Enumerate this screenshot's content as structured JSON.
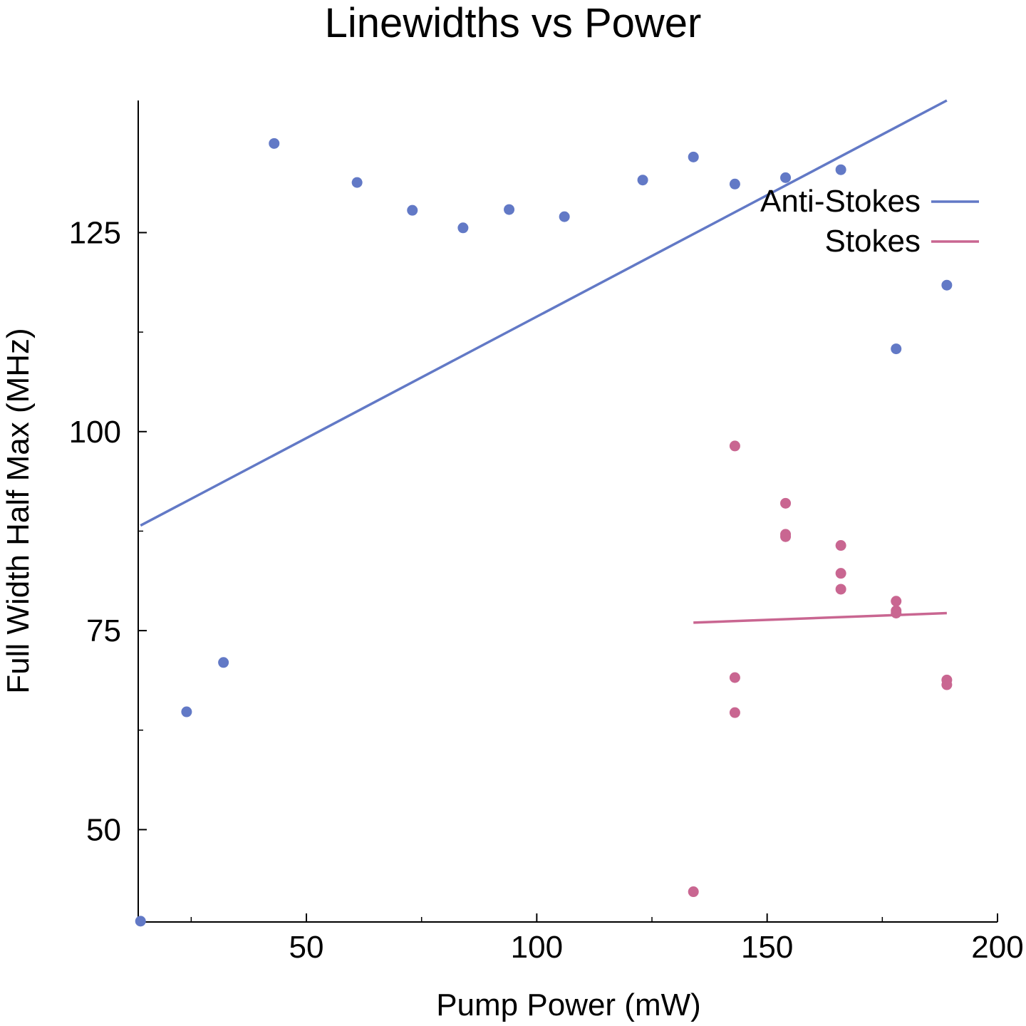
{
  "chart_data": {
    "type": "scatter",
    "title": "Linewidths vs Power",
    "xlabel": "Pump Power (mW)",
    "ylabel": "Full Width Half Max (MHz)",
    "xlim": [
      13.5,
      200
    ],
    "ylim": [
      38.4,
      141.6
    ],
    "x_ticks": [
      50,
      100,
      150,
      200
    ],
    "x_tick_labels": [
      "50",
      "100",
      "150",
      "200"
    ],
    "x_minor_ticks": [
      25,
      75,
      125,
      175
    ],
    "y_ticks": [
      50,
      75,
      100,
      125
    ],
    "y_tick_labels": [
      "50",
      "75",
      "100",
      "125"
    ],
    "y_minor_ticks": [
      62.5,
      87.5,
      112.5
    ],
    "grid": false,
    "legend_position": "top-right",
    "series": [
      {
        "name": "Anti-Stokes",
        "color": "#6279c6",
        "points": [
          [
            14,
            38.5
          ],
          [
            24,
            64.8
          ],
          [
            32,
            71
          ],
          [
            43,
            136.2
          ],
          [
            61,
            131.3
          ],
          [
            73,
            127.8
          ],
          [
            84,
            125.6
          ],
          [
            94,
            127.9
          ],
          [
            106,
            127.0
          ],
          [
            123,
            131.6
          ],
          [
            134,
            134.5
          ],
          [
            143,
            131.1
          ],
          [
            154,
            131.9
          ],
          [
            166,
            132.9
          ],
          [
            178,
            110.4
          ],
          [
            189,
            118.4
          ]
        ],
        "fit": [
          [
            14,
            88.2
          ],
          [
            189,
            141.6
          ]
        ]
      },
      {
        "name": "Stokes",
        "color": "#c96691",
        "points": [
          [
            134,
            42.2
          ],
          [
            143,
            98.2
          ],
          [
            143,
            69.1
          ],
          [
            143,
            64.7
          ],
          [
            154,
            91.0
          ],
          [
            154,
            87.1
          ],
          [
            154,
            86.8
          ],
          [
            166,
            85.7
          ],
          [
            166,
            82.2
          ],
          [
            166,
            80.2
          ],
          [
            178,
            78.7
          ],
          [
            178,
            77.5
          ],
          [
            178,
            77.2
          ],
          [
            189,
            68.8
          ],
          [
            189,
            68.2
          ]
        ],
        "fit": [
          [
            134,
            76.0
          ],
          [
            189,
            77.2
          ]
        ]
      }
    ]
  }
}
